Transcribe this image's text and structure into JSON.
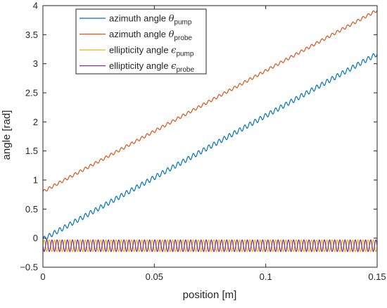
{
  "chart_data": {
    "type": "line",
    "xlabel": "position [m]",
    "ylabel": "angle [rad]",
    "xlim": [
      0,
      0.15
    ],
    "ylim": [
      -0.5,
      4
    ],
    "xticks": [
      0,
      0.05,
      0.1,
      0.15
    ],
    "xtick_labels": [
      "0",
      "0.05",
      "0.1",
      "0.15"
    ],
    "yticks": [
      -0.5,
      0,
      0.5,
      1,
      1.5,
      2,
      2.5,
      3,
      3.5,
      4
    ],
    "ytick_labels": [
      "−0.5",
      "0",
      "0.5",
      "1",
      "1.5",
      "2",
      "2.5",
      "3",
      "3.5",
      "4"
    ],
    "grid": false,
    "legend_position": "top-left",
    "series": [
      {
        "name": "azimuth angle θpump",
        "legend_main": "azimuth angle ",
        "legend_symbol": "θ",
        "legend_sub": "pump",
        "color": "#0072bd",
        "shape": "linear-with-ripple",
        "start": -0.02,
        "end": 3.17,
        "ripple_amplitude": 0.04,
        "oscillations": 65
      },
      {
        "name": "azimuth angle θprobe",
        "legend_main": "azimuth angle ",
        "legend_symbol": "θ",
        "legend_sub": "probe",
        "color": "#d95319",
        "shape": "linear-with-ripple",
        "start": 0.8,
        "end": 3.92,
        "ripple_amplitude": 0.025,
        "oscillations": 65
      },
      {
        "name": "ellipticity angle ϵpump",
        "legend_main": "ellipticity angle ",
        "legend_symbol": "ϵ",
        "legend_sub": "pump",
        "color": "#edb120",
        "shape": "oscillation",
        "center": -0.13,
        "amplitude": 0.1,
        "oscillations": 65,
        "phase": 0
      },
      {
        "name": "ellipticity angle ϵprobe",
        "legend_main": "ellipticity angle ",
        "legend_symbol": "ϵ",
        "legend_sub": "probe",
        "color": "#7e2f8e",
        "shape": "oscillation",
        "center": -0.13,
        "amplitude": 0.1,
        "oscillations": 65,
        "phase": 3.14159
      }
    ]
  }
}
